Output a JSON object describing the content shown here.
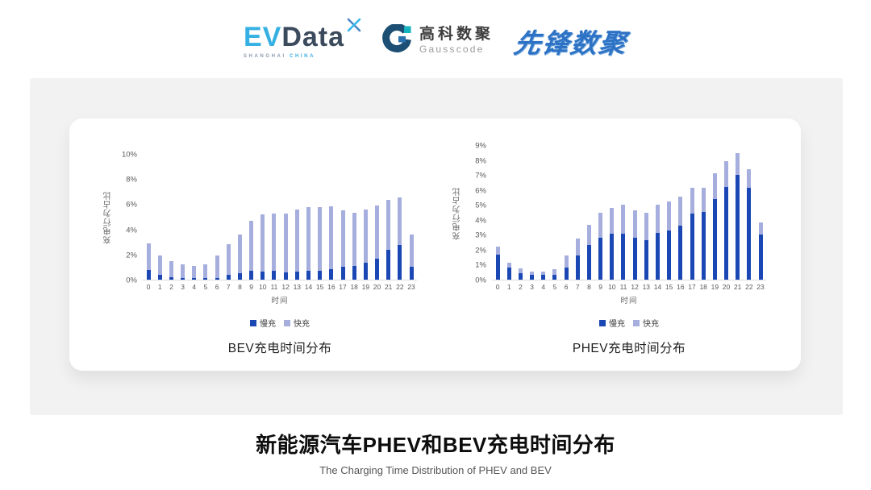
{
  "header": {
    "evdata": {
      "word_ev": "EV",
      "word_data": "Data",
      "tagline_left": "SHANGHAI",
      "tagline_right": "CHINA"
    },
    "gausscode": {
      "name_cn": "高科数聚",
      "name_en": "Gausscode"
    },
    "pioneer_wordmark": "先锋数聚"
  },
  "footer": {
    "title": "新能源汽车PHEV和BEV充电时间分布",
    "subtitle": "The Charging Time Distribution of PHEV and BEV"
  },
  "colors": {
    "slow_charge": "#1a47b3",
    "fast_charge": "#a6aedd",
    "panel_background": "#f2f2f2"
  },
  "chart_data": [
    {
      "type": "bar",
      "variant": "stacked",
      "title": "BEV充电时间分布",
      "xlabel": "时间",
      "ylabel": "充电行为占比",
      "ymax": 10,
      "ytick_step": 2,
      "ytick_suffix": "%",
      "grid": false,
      "legend_position": "bottom",
      "categories": [
        "0",
        "1",
        "2",
        "3",
        "4",
        "5",
        "6",
        "7",
        "8",
        "9",
        "10",
        "11",
        "12",
        "13",
        "14",
        "15",
        "16",
        "17",
        "18",
        "19",
        "20",
        "21",
        "22",
        "23"
      ],
      "series": [
        {
          "name": "慢充",
          "color": "#1a47b3",
          "values": [
            0.8,
            0.4,
            0.2,
            0.15,
            0.1,
            0.1,
            0.15,
            0.4,
            0.5,
            0.7,
            0.65,
            0.7,
            0.6,
            0.65,
            0.7,
            0.7,
            0.85,
            1.0,
            1.1,
            1.35,
            1.65,
            2.4,
            2.75,
            1.0
          ]
        },
        {
          "name": "快充",
          "color": "#a6aedd",
          "values": [
            2.1,
            1.5,
            1.3,
            1.05,
            1.0,
            1.1,
            1.8,
            2.4,
            3.1,
            3.95,
            4.55,
            4.55,
            4.65,
            4.95,
            5.1,
            5.1,
            5.0,
            4.5,
            4.25,
            4.25,
            4.25,
            3.95,
            3.8,
            2.6
          ]
        }
      ]
    },
    {
      "type": "bar",
      "variant": "stacked",
      "title": "PHEV充电时间分布",
      "xlabel": "时间",
      "ylabel": "充电行为占比",
      "ymax": 9,
      "ytick_step": 1,
      "ytick_suffix": "%",
      "grid": false,
      "legend_position": "bottom",
      "categories": [
        "0",
        "1",
        "2",
        "3",
        "4",
        "5",
        "6",
        "7",
        "8",
        "9",
        "10",
        "11",
        "12",
        "13",
        "14",
        "15",
        "16",
        "17",
        "18",
        "19",
        "20",
        "21",
        "22",
        "23"
      ],
      "series": [
        {
          "name": "慢充",
          "color": "#1a47b3",
          "values": [
            1.65,
            0.8,
            0.45,
            0.3,
            0.3,
            0.35,
            0.8,
            1.6,
            2.3,
            2.8,
            3.05,
            3.05,
            2.8,
            2.65,
            3.1,
            3.3,
            3.6,
            4.4,
            4.55,
            5.4,
            6.2,
            7.0,
            6.15,
            3.0
          ]
        },
        {
          "name": "快充",
          "color": "#a6aedd",
          "values": [
            0.55,
            0.35,
            0.3,
            0.25,
            0.25,
            0.35,
            0.8,
            1.15,
            1.35,
            1.7,
            1.75,
            1.95,
            1.85,
            1.85,
            1.9,
            1.95,
            1.95,
            1.75,
            1.6,
            1.7,
            1.75,
            1.45,
            1.25,
            0.85
          ]
        }
      ]
    }
  ]
}
